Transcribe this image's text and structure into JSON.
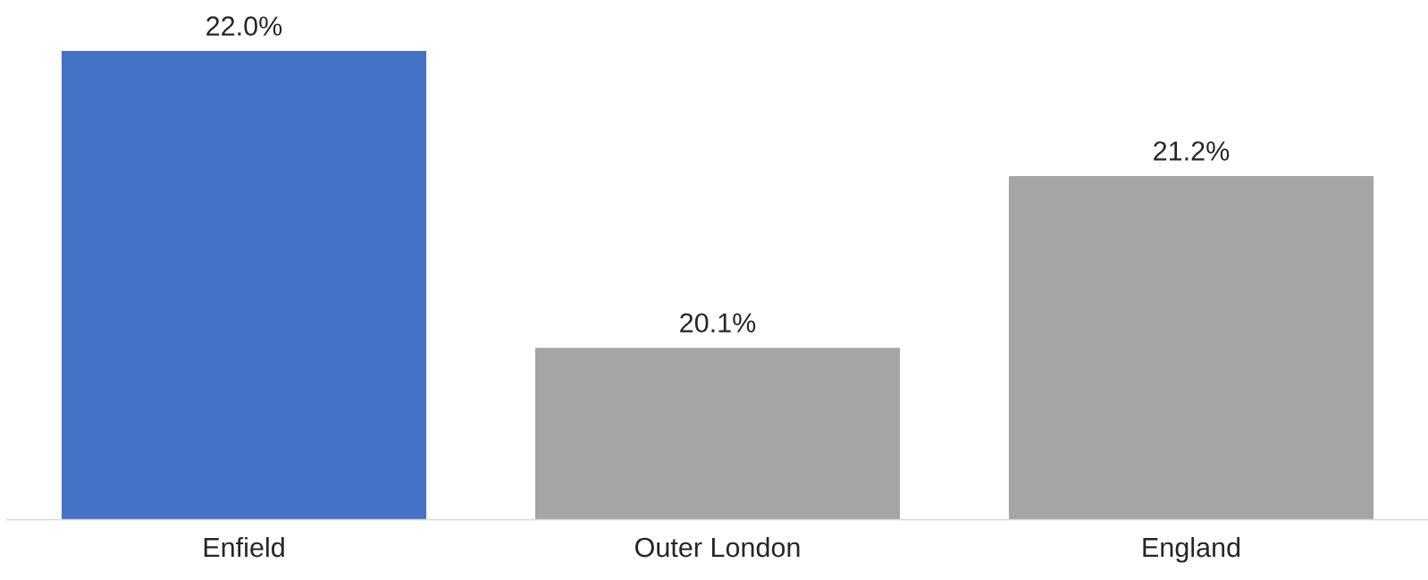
{
  "chart_data": {
    "type": "bar",
    "categories": [
      "Enfield",
      "Outer London",
      "England"
    ],
    "values": [
      22.0,
      20.1,
      21.2
    ],
    "colors": [
      "#4472c4",
      "#a5a5a5",
      "#a5a5a5"
    ],
    "value_labels": [
      "22.0%",
      "20.1%",
      "21.2%"
    ],
    "ylim": [
      19.0,
      22.0
    ],
    "tick_labels": "x",
    "grid": false,
    "legend": false
  }
}
